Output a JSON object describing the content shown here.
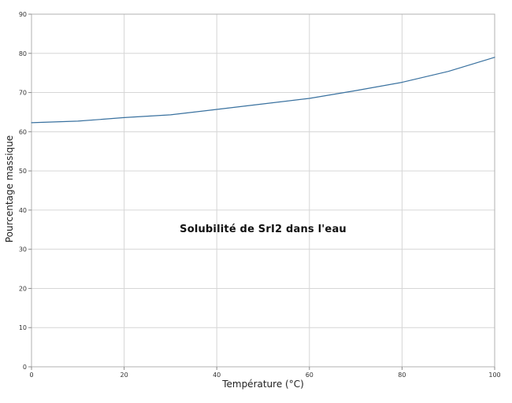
{
  "chart_data": {
    "type": "line",
    "title": "Solubilité de SrI2 dans l'eau",
    "xlabel": "Température (°C)",
    "ylabel": "Pourcentage massique",
    "x": [
      0,
      10,
      20,
      30,
      40,
      50,
      60,
      70,
      80,
      90,
      100
    ],
    "values": [
      62.3,
      62.7,
      63.6,
      64.3,
      65.7,
      67.1,
      68.5,
      70.5,
      72.6,
      75.4,
      79.0
    ],
    "xlim": [
      0,
      100
    ],
    "ylim": [
      0,
      90
    ],
    "xticks": [
      0,
      20,
      40,
      60,
      80,
      100
    ],
    "yticks": [
      0,
      10,
      20,
      30,
      40,
      50,
      60,
      70,
      80,
      90
    ],
    "grid": true,
    "legend": "none",
    "line_color": "#39719f",
    "grid_color": "#d6d6d6",
    "border_color": "#b0b0b0",
    "tick_color": "#8c8c8c",
    "text_color": "#333333",
    "background_color": "#ffffff"
  }
}
